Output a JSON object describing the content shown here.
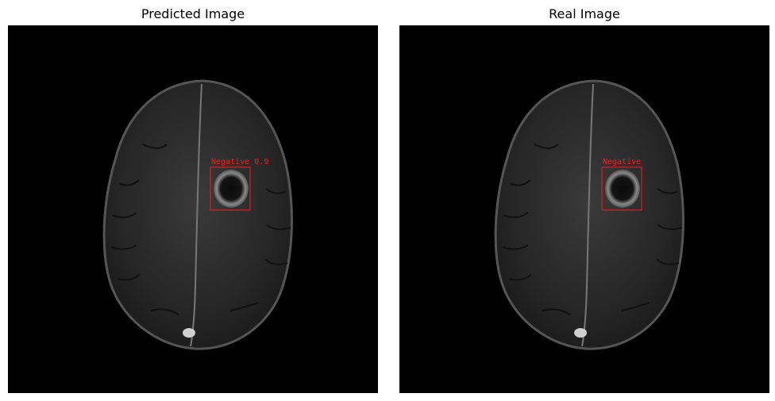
{
  "panels": [
    {
      "title": "Predicted Image",
      "detection": {
        "label": "Negative",
        "score": "0.9"
      }
    },
    {
      "title": "Real Image",
      "detection": {
        "label": "Negative"
      }
    }
  ],
  "colors": {
    "background": "#000000",
    "bbox": "#ff1a1a",
    "tissue": "#2a2a2a"
  }
}
